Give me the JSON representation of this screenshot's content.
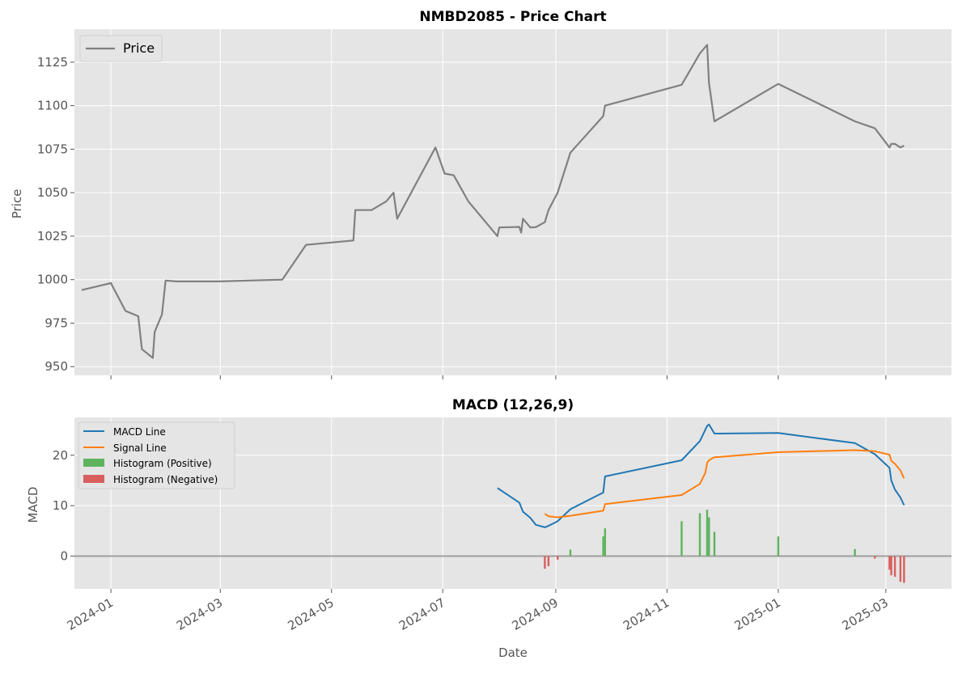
{
  "chart_data": [
    {
      "type": "line",
      "title": "NMBD2085 - Price Chart",
      "xlabel": "",
      "ylabel": "Price",
      "ylim": [
        945,
        1144
      ],
      "xlim": [
        "2023-12-12",
        "2025-04-06"
      ],
      "yticks": [
        950,
        975,
        1000,
        1025,
        1050,
        1075,
        1100,
        1125
      ],
      "grid": true,
      "legend": {
        "position": "upper-left",
        "entries": [
          {
            "label": "Price",
            "color": "#808080"
          }
        ]
      },
      "series": [
        {
          "name": "Price",
          "color": "#808080",
          "x": [
            "2023-12-16",
            "2024-01-01",
            "2024-01-09",
            "2024-01-16",
            "2024-01-18",
            "2024-01-24",
            "2024-01-25",
            "2024-01-29",
            "2024-01-31",
            "2024-02-06",
            "2024-02-29",
            "2024-04-04",
            "2024-04-17",
            "2024-05-13",
            "2024-05-14",
            "2024-05-23",
            "2024-05-31",
            "2024-06-04",
            "2024-06-06",
            "2024-06-27",
            "2024-07-02",
            "2024-07-07",
            "2024-07-15",
            "2024-07-31",
            "2024-08-01",
            "2024-08-12",
            "2024-08-13",
            "2024-08-14",
            "2024-08-18",
            "2024-08-21",
            "2024-08-26",
            "2024-08-28",
            "2024-09-02",
            "2024-09-09",
            "2024-09-27",
            "2024-09-28",
            "2024-11-09",
            "2024-11-19",
            "2024-11-23",
            "2024-11-24",
            "2024-11-27",
            "2025-01-01",
            "2025-02-12",
            "2025-02-23",
            "2025-03-03",
            "2025-03-04",
            "2025-03-06",
            "2025-03-09",
            "2025-03-11"
          ],
          "values": [
            994,
            998,
            982,
            979,
            960,
            955,
            970,
            980,
            999.5,
            999,
            999,
            1000,
            1020,
            1022.5,
            1040,
            1040,
            1045,
            1050,
            1035,
            1076,
            1061,
            1060,
            1045,
            1025,
            1030,
            1030.3,
            1027,
            1035,
            1030,
            1030.2,
            1033,
            1040,
            1050,
            1073,
            1094,
            1100,
            1112,
            1130,
            1135,
            1113,
            1091,
            1112.5,
            1091,
            1087,
            1076,
            1078,
            1078,
            1076,
            1077
          ]
        }
      ]
    },
    {
      "type": "line",
      "title": "MACD (12,26,9)",
      "xlabel": "Date",
      "ylabel": "MACD",
      "ylim": [
        -6.5,
        27.5
      ],
      "xlim": [
        "2023-12-12",
        "2025-04-06"
      ],
      "yticks": [
        0,
        10,
        20
      ],
      "xticks": [
        "2024-01",
        "2024-03",
        "2024-05",
        "2024-07",
        "2024-09",
        "2024-11",
        "2025-01",
        "2025-03"
      ],
      "grid": true,
      "legend": {
        "position": "upper-left",
        "entries": [
          {
            "label": "MACD Line",
            "color": "#1f77b4",
            "kind": "line"
          },
          {
            "label": "Signal Line",
            "color": "#ff7f0e",
            "kind": "line"
          },
          {
            "label": "Histogram (Positive)",
            "color": "#5fb35f",
            "kind": "patch"
          },
          {
            "label": "Histogram (Negative)",
            "color": "#d95f5f",
            "kind": "patch"
          }
        ]
      },
      "series": [
        {
          "name": "MACD Line",
          "color": "#1f77b4",
          "x": [
            "2024-07-31",
            "2024-08-12",
            "2024-08-14",
            "2024-08-18",
            "2024-08-21",
            "2024-08-26",
            "2024-08-28",
            "2024-09-02",
            "2024-09-09",
            "2024-09-27",
            "2024-09-28",
            "2024-11-09",
            "2024-11-19",
            "2024-11-23",
            "2024-11-24",
            "2024-11-27",
            "2025-01-01",
            "2025-02-12",
            "2025-02-23",
            "2025-03-03",
            "2025-03-04",
            "2025-03-06",
            "2025-03-09",
            "2025-03-11"
          ],
          "values": [
            13.5,
            10.6,
            8.8,
            7.6,
            6.2,
            5.7,
            6.0,
            6.9,
            9.3,
            12.6,
            15.8,
            19.0,
            22.8,
            25.8,
            26.1,
            24.3,
            24.4,
            22.4,
            20.2,
            17.5,
            15.0,
            13.2,
            11.6,
            10.1
          ]
        },
        {
          "name": "Signal Line",
          "color": "#ff7f0e",
          "x": [
            "2024-08-26",
            "2024-08-28",
            "2024-09-02",
            "2024-09-09",
            "2024-09-27",
            "2024-09-28",
            "2024-11-09",
            "2024-11-19",
            "2024-11-22",
            "2024-11-23",
            "2024-11-24",
            "2024-11-27",
            "2025-01-01",
            "2025-02-12",
            "2025-02-23",
            "2025-03-03",
            "2025-03-04",
            "2025-03-06",
            "2025-03-09",
            "2025-03-11"
          ],
          "values": [
            8.4,
            7.9,
            7.7,
            8.0,
            9.0,
            10.3,
            12.1,
            14.3,
            16.5,
            18.5,
            19.0,
            19.6,
            20.6,
            21.0,
            20.8,
            20.1,
            18.9,
            18.3,
            17.0,
            15.4
          ]
        }
      ],
      "histogram": {
        "x": [
          "2024-08-26",
          "2024-08-28",
          "2024-09-02",
          "2024-09-09",
          "2024-09-27",
          "2024-09-28",
          "2024-11-09",
          "2024-11-19",
          "2024-11-23",
          "2024-11-24",
          "2024-11-27",
          "2025-01-01",
          "2025-02-12",
          "2025-02-23",
          "2025-03-03",
          "2025-03-04",
          "2025-03-06",
          "2025-03-09",
          "2025-03-11"
        ],
        "values": [
          -2.5,
          -2.0,
          -0.7,
          1.3,
          3.9,
          5.5,
          6.9,
          8.5,
          9.2,
          7.7,
          4.8,
          3.9,
          1.4,
          -0.5,
          -2.7,
          -3.8,
          -4.1,
          -5.1,
          -5.3
        ]
      }
    }
  ]
}
